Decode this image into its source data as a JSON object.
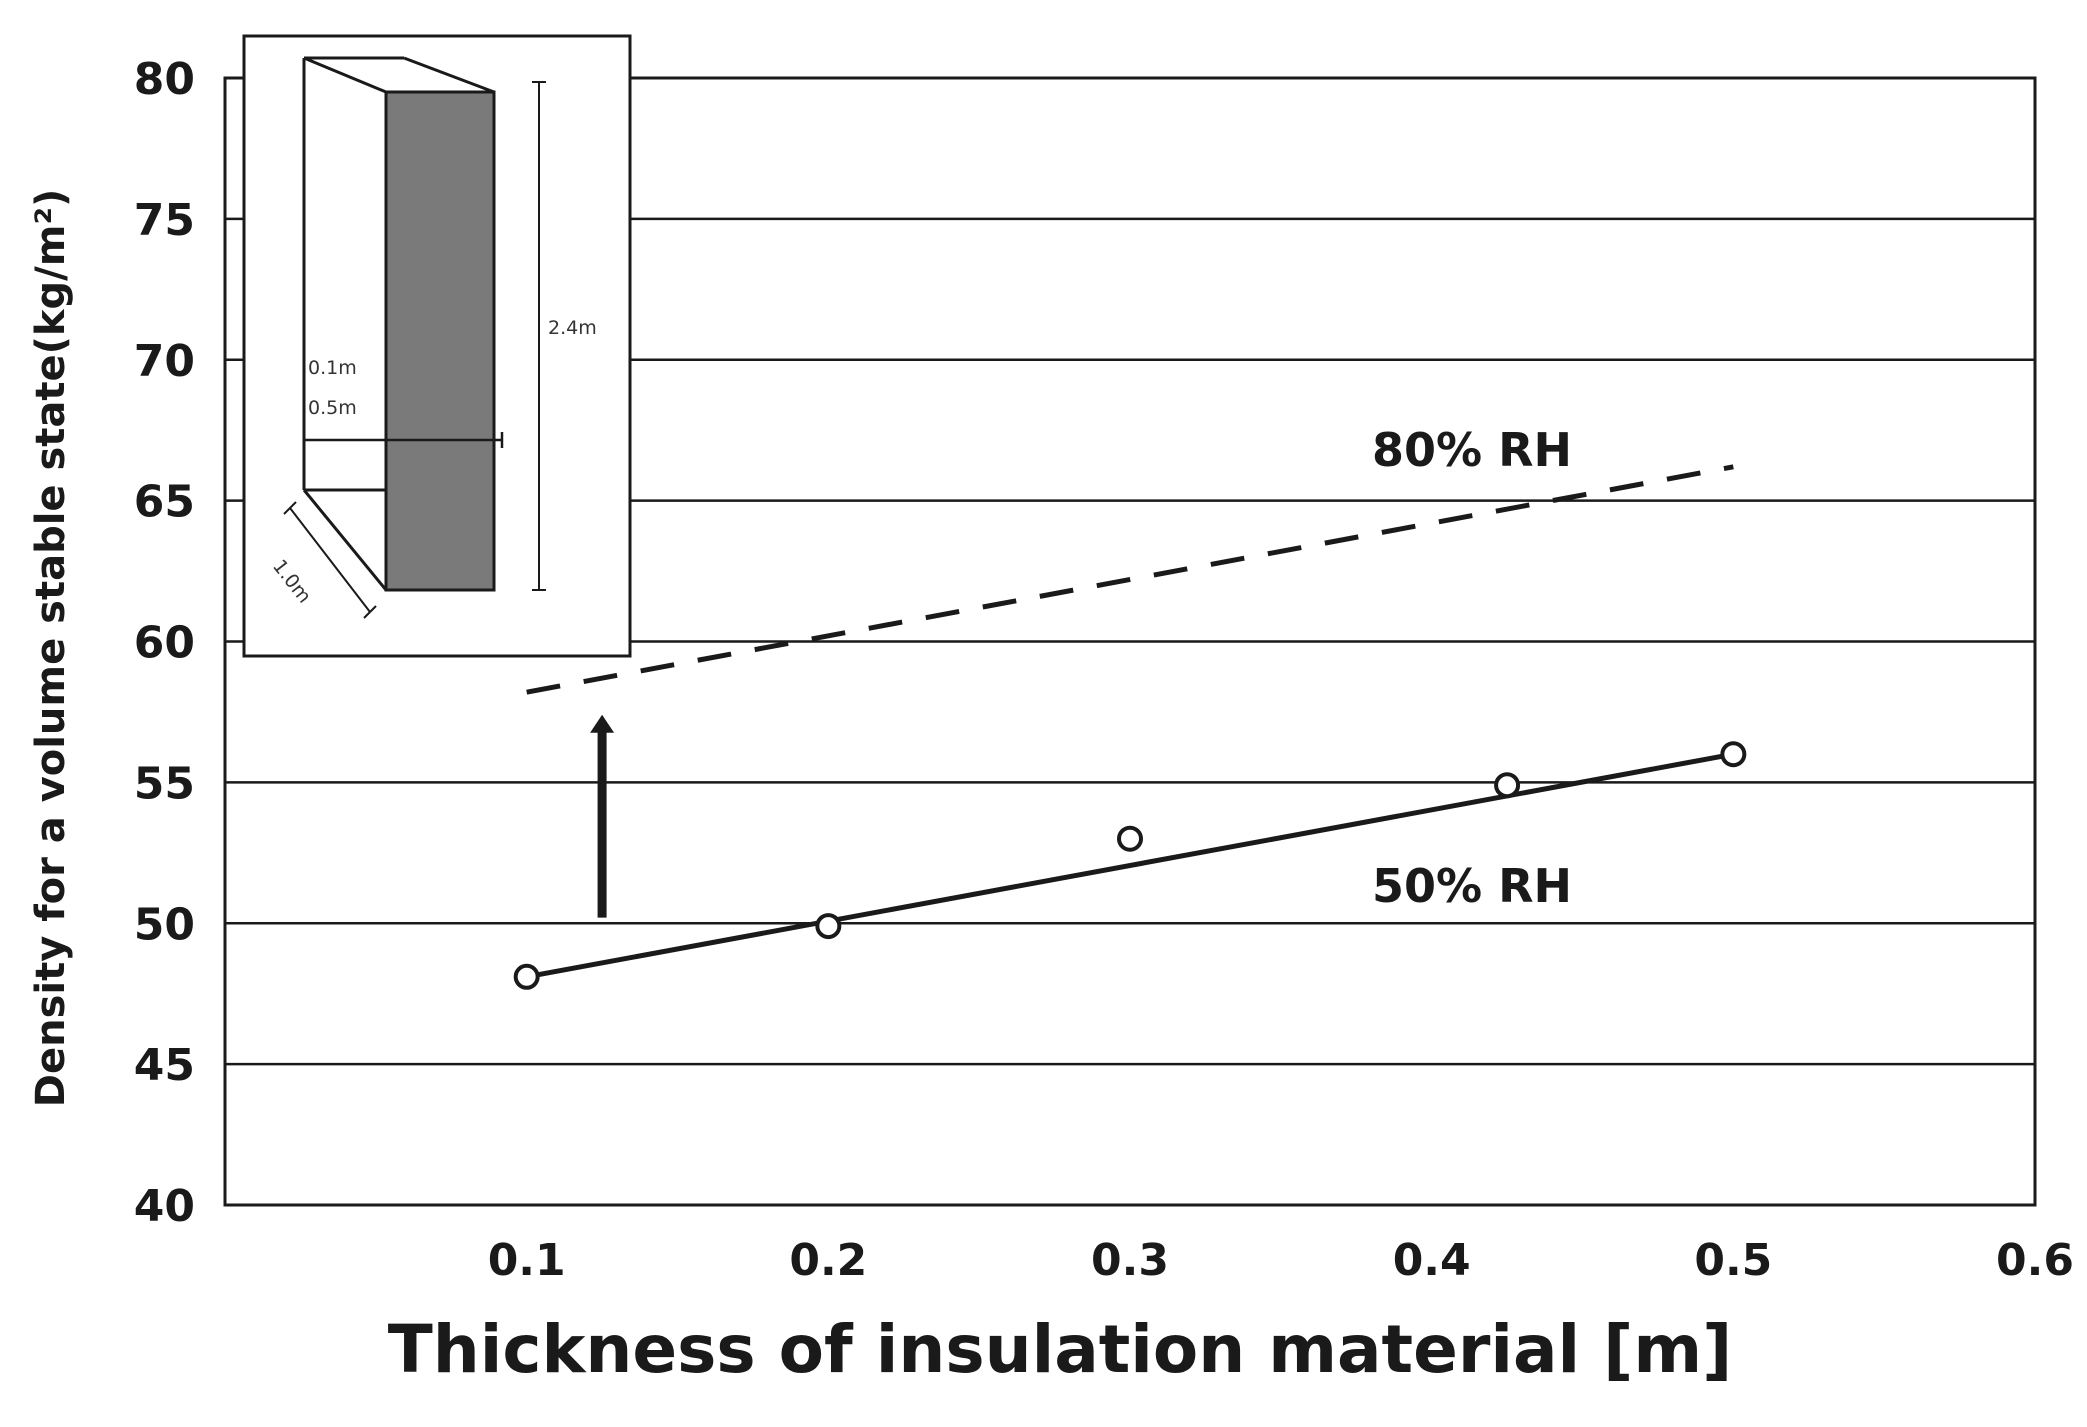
{
  "chart_data": {
    "type": "line",
    "title": "",
    "xlabel": "Thickness of insulation material [m]",
    "ylabel": "Density for a volume stable state(kg/m²)",
    "xlim": [
      0,
      0.6
    ],
    "ylim": [
      40,
      80
    ],
    "x_ticks": [
      "0.1",
      "0.2",
      "0.3",
      "0.4",
      "0.5",
      "0.6"
    ],
    "x_tick_values": [
      0.1,
      0.2,
      0.3,
      0.4,
      0.5,
      0.6
    ],
    "y_ticks": [
      "40",
      "45",
      "50",
      "55",
      "60",
      "65",
      "70",
      "75",
      "80"
    ],
    "y_tick_values": [
      40,
      45,
      50,
      55,
      60,
      65,
      70,
      75,
      80
    ],
    "grid": "horizontal",
    "series": [
      {
        "name": "50% RH",
        "style": "solid",
        "points": [
          {
            "x": 0.1,
            "y": 48.1
          },
          {
            "x": 0.2,
            "y": 49.9
          },
          {
            "x": 0.3,
            "y": 53.0
          },
          {
            "x": 0.425,
            "y": 54.9
          },
          {
            "x": 0.5,
            "y": 56.0
          }
        ],
        "fit_line": [
          {
            "x": 0.1,
            "y": 48.1
          },
          {
            "x": 0.5,
            "y": 56.0
          }
        ]
      },
      {
        "name": "80% RH",
        "style": "dashed",
        "points": [],
        "fit_line": [
          {
            "x": 0.1,
            "y": 58.2
          },
          {
            "x": 0.5,
            "y": 66.2
          }
        ]
      }
    ],
    "annotations": {
      "arrow": {
        "x": 0.125,
        "from_y": 50.2,
        "to_y": 57.4,
        "meaning": "increase from 50% RH to 80% RH"
      },
      "inset": {
        "description": "wall specimen sketch",
        "labels": [
          "0.1m",
          "0.5m",
          "2.4m",
          "1.0m"
        ]
      }
    },
    "colors": {
      "line": "#1a1a1a",
      "grid": "#1a1a1a",
      "inset_fill": "#7a7a7a"
    }
  }
}
